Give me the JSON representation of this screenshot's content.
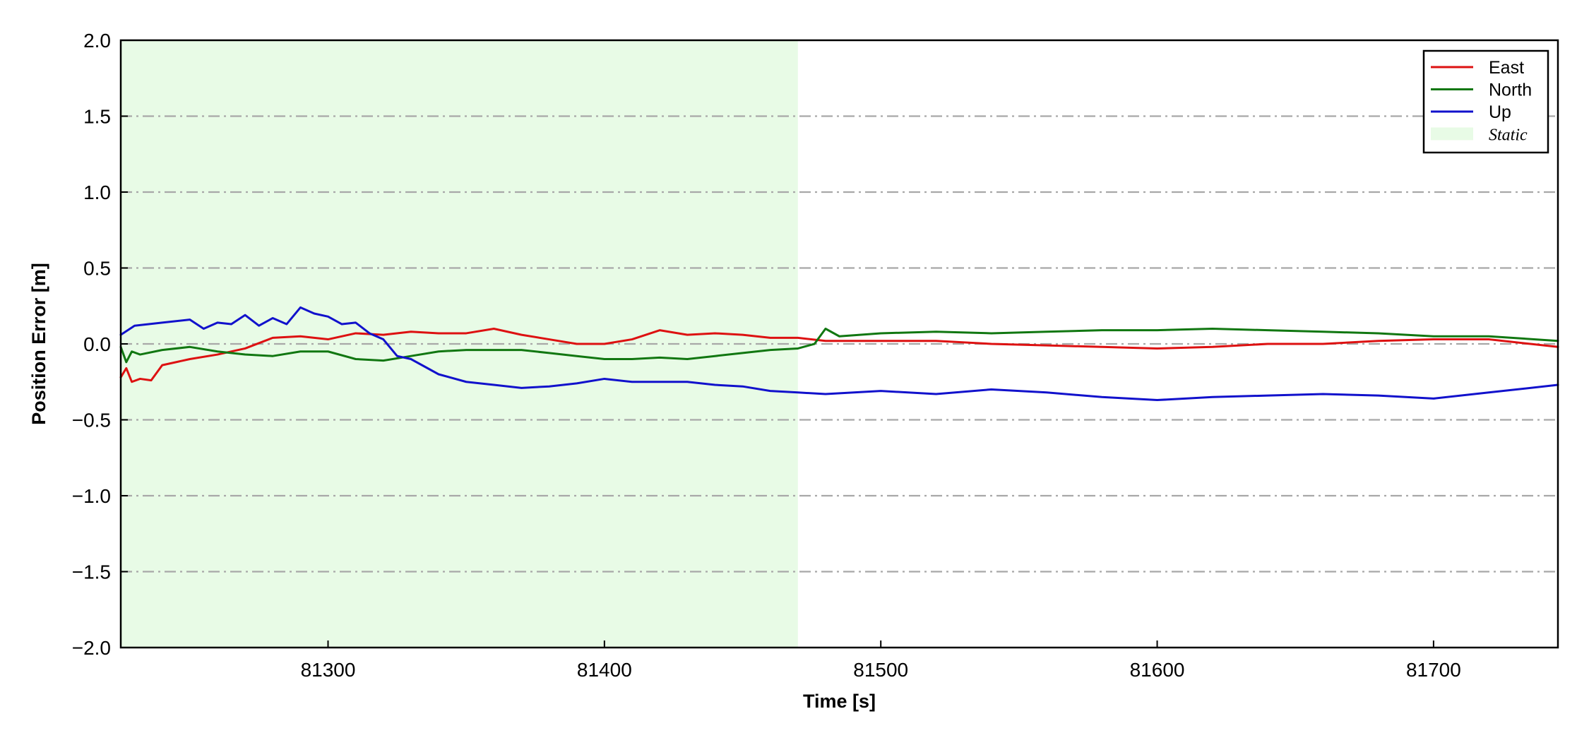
{
  "chart_data": {
    "type": "line",
    "xlabel": "Time [s]",
    "ylabel": "Position Error [m]",
    "xlim": [
      81225,
      81745
    ],
    "ylim": [
      -2.0,
      2.0
    ],
    "x_ticks": [
      81300,
      81400,
      81500,
      81600,
      81700
    ],
    "x_tick_labels": [
      "81300",
      "81400",
      "81500",
      "81600",
      "81700"
    ],
    "y_ticks": [
      -2.0,
      -1.5,
      -1.0,
      -0.5,
      0.0,
      0.5,
      1.0,
      1.5,
      2.0
    ],
    "y_tick_labels": [
      "−2.0",
      "−1.5",
      "−1.0",
      "−0.5",
      "0.0",
      "0.5",
      "1.0",
      "1.5",
      "2.0"
    ],
    "grid": "horizontal dash-dot, gray",
    "legend_position": "top-right",
    "shaded_regions": [
      {
        "name": "Static",
        "x_start": 81225,
        "x_end": 81470,
        "color": "#e8fbe6"
      }
    ],
    "series": [
      {
        "name": "East",
        "color": "#dd1111",
        "x": [
          81225,
          81227,
          81229,
          81232,
          81236,
          81240,
          81250,
          81260,
          81270,
          81280,
          81290,
          81300,
          81310,
          81320,
          81330,
          81340,
          81350,
          81360,
          81370,
          81380,
          81390,
          81400,
          81410,
          81420,
          81430,
          81440,
          81450,
          81460,
          81470,
          81480,
          81500,
          81520,
          81540,
          81560,
          81580,
          81600,
          81620,
          81640,
          81660,
          81680,
          81700,
          81720,
          81745
        ],
        "y": [
          -0.22,
          -0.16,
          -0.25,
          -0.23,
          -0.24,
          -0.14,
          -0.1,
          -0.07,
          -0.03,
          0.04,
          0.05,
          0.03,
          0.07,
          0.06,
          0.08,
          0.07,
          0.07,
          0.1,
          0.06,
          0.03,
          0.0,
          0.0,
          0.03,
          0.09,
          0.06,
          0.07,
          0.06,
          0.04,
          0.04,
          0.02,
          0.02,
          0.02,
          0.0,
          -0.01,
          -0.02,
          -0.03,
          -0.02,
          0.0,
          0.0,
          0.02,
          0.03,
          0.03,
          -0.02
        ]
      },
      {
        "name": "North",
        "color": "#117711",
        "x": [
          81225,
          81227,
          81229,
          81232,
          81240,
          81250,
          81260,
          81270,
          81280,
          81290,
          81300,
          81310,
          81320,
          81330,
          81340,
          81350,
          81360,
          81370,
          81380,
          81390,
          81400,
          81410,
          81420,
          81430,
          81440,
          81450,
          81460,
          81470,
          81476,
          81480,
          81485,
          81500,
          81520,
          81540,
          81560,
          81580,
          81600,
          81620,
          81640,
          81660,
          81680,
          81700,
          81720,
          81745
        ],
        "y": [
          -0.02,
          -0.12,
          -0.05,
          -0.07,
          -0.04,
          -0.02,
          -0.05,
          -0.07,
          -0.08,
          -0.05,
          -0.05,
          -0.1,
          -0.11,
          -0.08,
          -0.05,
          -0.04,
          -0.04,
          -0.04,
          -0.06,
          -0.08,
          -0.1,
          -0.1,
          -0.09,
          -0.1,
          -0.08,
          -0.06,
          -0.04,
          -0.03,
          0.0,
          0.1,
          0.05,
          0.07,
          0.08,
          0.07,
          0.08,
          0.09,
          0.09,
          0.1,
          0.09,
          0.08,
          0.07,
          0.05,
          0.05,
          0.02
        ]
      },
      {
        "name": "Up",
        "color": "#1111cc",
        "x": [
          81225,
          81230,
          81240,
          81250,
          81255,
          81260,
          81265,
          81270,
          81275,
          81280,
          81285,
          81290,
          81295,
          81300,
          81305,
          81310,
          81315,
          81320,
          81325,
          81330,
          81335,
          81340,
          81350,
          81360,
          81370,
          81380,
          81390,
          81400,
          81410,
          81420,
          81430,
          81440,
          81450,
          81460,
          81470,
          81480,
          81500,
          81520,
          81540,
          81560,
          81580,
          81600,
          81620,
          81640,
          81660,
          81680,
          81700,
          81720,
          81745
        ],
        "y": [
          0.06,
          0.12,
          0.14,
          0.16,
          0.1,
          0.14,
          0.13,
          0.19,
          0.12,
          0.17,
          0.13,
          0.24,
          0.2,
          0.18,
          0.13,
          0.14,
          0.07,
          0.03,
          -0.08,
          -0.1,
          -0.15,
          -0.2,
          -0.25,
          -0.27,
          -0.29,
          -0.28,
          -0.26,
          -0.23,
          -0.25,
          -0.25,
          -0.25,
          -0.27,
          -0.28,
          -0.31,
          -0.32,
          -0.33,
          -0.31,
          -0.33,
          -0.3,
          -0.32,
          -0.35,
          -0.37,
          -0.35,
          -0.34,
          -0.33,
          -0.34,
          -0.36,
          -0.32,
          -0.27
        ]
      }
    ]
  }
}
